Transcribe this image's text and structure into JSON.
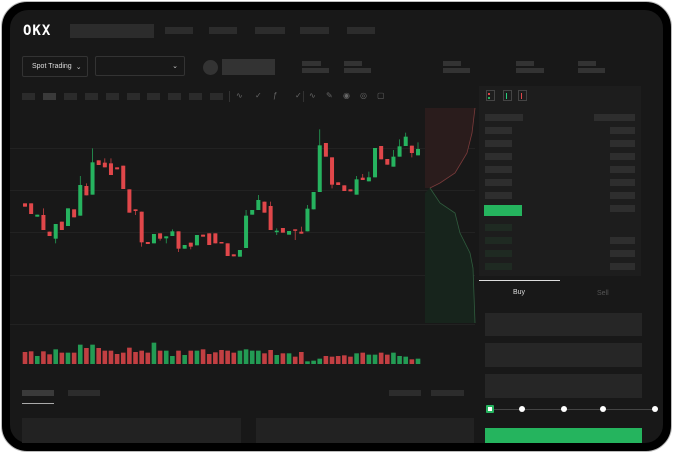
{
  "header": {
    "logo": "OKX"
  },
  "controls": {
    "market_type": "Spot Trading",
    "pair_dropdown": ""
  },
  "order_form": {
    "tabs": [
      "Buy",
      "Sell"
    ],
    "active_tab": "Buy",
    "slider_percent": 0
  },
  "colors": {
    "up": "#26b35f",
    "down": "#e0474a",
    "background": "#181818",
    "accent": "#25b45e"
  },
  "icons": [
    "chevron-down-icon",
    "indicator-icon",
    "draw-line-icon",
    "camera-icon",
    "settings-icon",
    "fullscreen-icon",
    "orderbook-both-icon",
    "orderbook-bids-icon",
    "orderbook-asks-icon"
  ],
  "chart": {
    "type": "candlestick",
    "candles": [
      [
        250,
        240
      ],
      [
        250,
        218
      ],
      [
        210,
        216
      ],
      [
        215,
        170,
        235
      ],
      [
        165,
        152
      ],
      [
        144,
        188,
        188,
        130
      ],
      [
        195,
        170
      ],
      [
        182,
        235
      ],
      [
        232,
        208
      ],
      [
        213,
        305,
        332
      ],
      [
        302,
        274,
        310
      ],
      [
        276,
        373,
        415
      ],
      [
        379,
        365
      ],
      [
        372,
        358,
        385
      ],
      [
        370,
        335,
        385
      ],
      [
        358,
        352
      ],
      [
        363,
        293
      ],
      [
        292,
        222
      ],
      [
        232,
        227,
        232,
        215
      ],
      [
        225,
        133,
        225,
        120
      ],
      [
        134,
        128
      ],
      [
        130,
        158
      ],
      [
        160,
        144,
        160,
        138
      ],
      [
        145,
        151,
        151,
        130
      ],
      [
        152,
        166,
        172
      ],
      [
        166,
        114,
        166,
        104
      ],
      [
        114,
        125
      ],
      [
        132,
        120,
        132,
        112
      ],
      [
        124,
        155
      ],
      [
        156,
        150
      ],
      [
        160,
        125
      ],
      [
        160,
        130
      ],
      [
        134,
        130
      ],
      [
        130,
        92
      ],
      [
        97,
        91
      ],
      [
        90,
        110
      ],
      [
        116,
        213,
        230
      ],
      [
        216,
        230
      ],
      [
        230,
        260,
        275
      ],
      [
        255,
        222
      ],
      [
        242,
        170,
        255
      ],
      [
        164,
        168,
        175,
        155
      ],
      [
        176,
        162
      ],
      [
        156,
        167
      ],
      [
        172,
        168,
        172,
        140
      ],
      [
        165,
        159,
        180
      ],
      [
        166,
        234,
        245
      ],
      [
        232,
        284
      ],
      [
        284,
        424,
        472
      ],
      [
        431,
        390
      ],
      [
        388,
        306,
        388,
        295
      ],
      [
        313,
        305
      ],
      [
        304,
        287
      ],
      [
        292,
        286
      ],
      [
        276,
        322,
        332
      ],
      [
        327,
        320,
        338
      ],
      [
        316,
        328,
        345
      ],
      [
        328,
        416
      ],
      [
        422,
        382
      ],
      [
        383,
        366
      ],
      [
        360,
        390,
        410
      ],
      [
        390,
        421,
        442
      ],
      [
        422,
        450,
        462
      ],
      [
        423,
        401,
        423,
        388
      ],
      [
        394,
        413,
        433
      ]
    ],
    "volumes": [
      36,
      38,
      24,
      38,
      29,
      44,
      34,
      34,
      34,
      58,
      48,
      58,
      48,
      40,
      40,
      30,
      34,
      49,
      36,
      40,
      34,
      64,
      40,
      40,
      24,
      40,
      27,
      40,
      40,
      44,
      30,
      35,
      42,
      40,
      34,
      40,
      44,
      40,
      40,
      32,
      42,
      27,
      32,
      32,
      22,
      36,
      8,
      10,
      16,
      24,
      22,
      24,
      26,
      22,
      32,
      34,
      28,
      28,
      34,
      28,
      34,
      24,
      22,
      14,
      16
    ]
  }
}
